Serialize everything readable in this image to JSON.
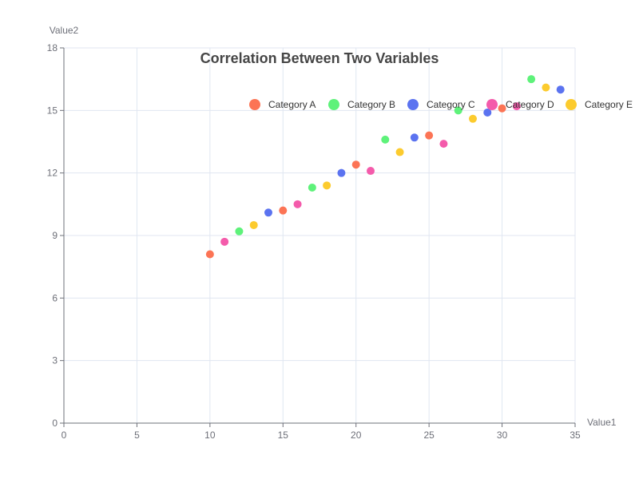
{
  "chart_data": {
    "type": "scatter",
    "title": "Correlation Between Two Variables",
    "xlabel": "Value1",
    "ylabel": "Value2",
    "xlim": [
      0,
      35
    ],
    "ylim": [
      0,
      18
    ],
    "xticks": [
      0,
      5,
      10,
      15,
      20,
      25,
      30,
      35
    ],
    "yticks": [
      0,
      3,
      6,
      9,
      12,
      15,
      18
    ],
    "grid": true,
    "legend_position": "top-right",
    "series": [
      {
        "name": "Category A",
        "color": "#fc7455",
        "points": [
          [
            10,
            8.1
          ],
          [
            15,
            10.2
          ],
          [
            20,
            12.4
          ],
          [
            25,
            13.8
          ],
          [
            30,
            15.1
          ]
        ]
      },
      {
        "name": "Category B",
        "color": "#5ef27a",
        "points": [
          [
            12,
            9.2
          ],
          [
            17,
            11.3
          ],
          [
            22,
            13.6
          ],
          [
            27,
            15.0
          ],
          [
            32,
            16.5
          ]
        ]
      },
      {
        "name": "Category C",
        "color": "#5b73f0",
        "points": [
          [
            14,
            10.1
          ],
          [
            19,
            12.0
          ],
          [
            24,
            13.7
          ],
          [
            29,
            14.9
          ],
          [
            34,
            16.0
          ]
        ]
      },
      {
        "name": "Category D",
        "color": "#f45bab",
        "points": [
          [
            11,
            8.7
          ],
          [
            16,
            10.5
          ],
          [
            21,
            12.1
          ],
          [
            26,
            13.4
          ],
          [
            31,
            15.2
          ]
        ]
      },
      {
        "name": "Category E",
        "color": "#fccb2e",
        "points": [
          [
            13,
            9.5
          ],
          [
            18,
            11.4
          ],
          [
            23,
            13.0
          ],
          [
            28,
            14.6
          ],
          [
            33,
            16.1
          ]
        ]
      }
    ]
  }
}
